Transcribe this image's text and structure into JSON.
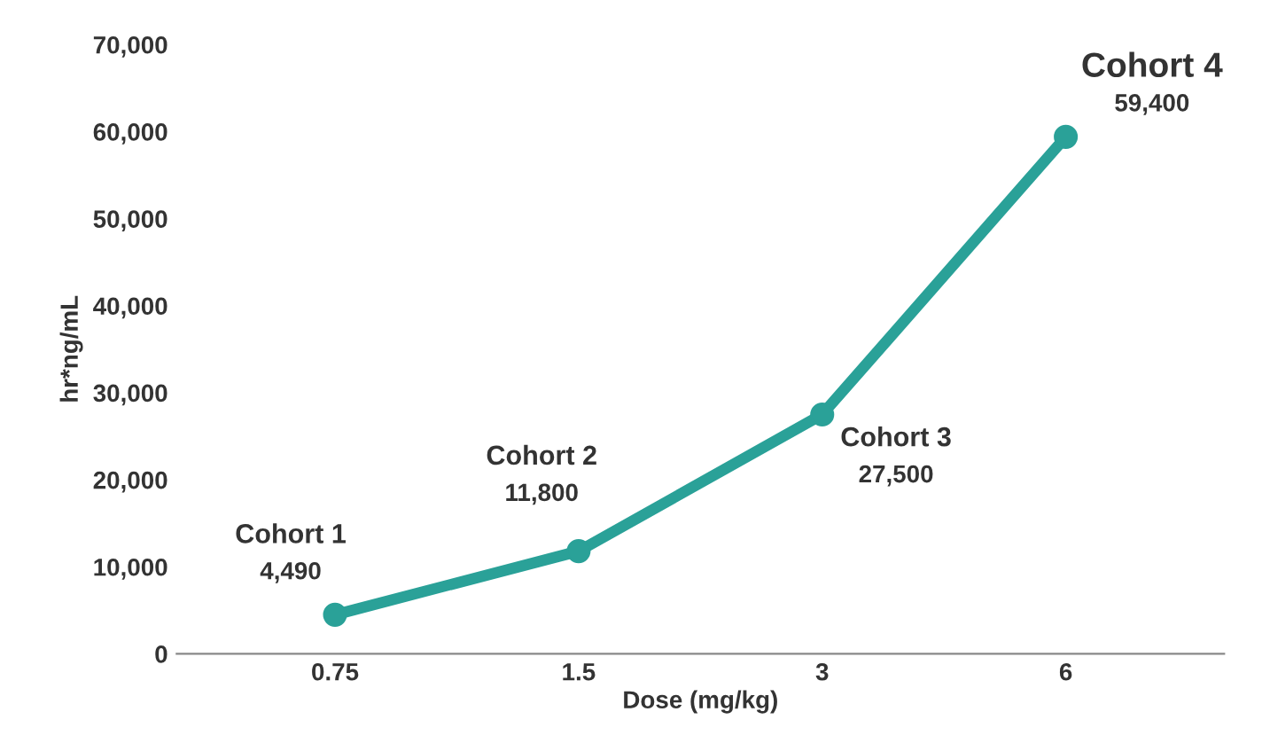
{
  "chart_data": {
    "type": "line",
    "xlabel": "Dose (mg/kg)",
    "ylabel": "hr*ng/mL",
    "categories": [
      "0.75",
      "1.5",
      "3",
      "6"
    ],
    "series": [
      {
        "color": "#2aa198",
        "values": [
          4490,
          11800,
          27500,
          59400
        ]
      }
    ],
    "ylim": [
      0,
      70000
    ],
    "yticks": [
      0,
      {
        "value": 10000,
        "label": "10,000"
      },
      {
        "value": 20000,
        "label": "20,000"
      },
      {
        "value": 30000,
        "label": "30,000"
      },
      {
        "value": 40000,
        "label": "40,000"
      },
      {
        "value": 50000,
        "label": "50,000"
      },
      {
        "value": 60000,
        "label": "60,000"
      },
      {
        "value": 70000,
        "label": "70,000"
      }
    ],
    "marker": "circle",
    "line_style": "solid",
    "grid": false,
    "legend": false,
    "annotations": [
      {
        "text": "Cohort 1\n4,490",
        "x": "0.75",
        "y": 4490
      },
      {
        "text": "Cohort 2\n11,800",
        "x": "1.5",
        "y": 11800
      },
      {
        "text": "Cohort 3\n27,500",
        "x": "3",
        "y": 27500
      },
      {
        "text": "Cohort 4\n59,400",
        "x": "6",
        "y": 59400
      }
    ]
  }
}
